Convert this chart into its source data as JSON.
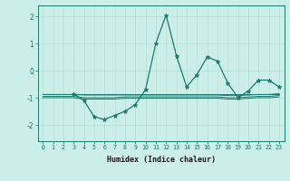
{
  "xlabel": "Humidex (Indice chaleur)",
  "bg_color": "#cceee8",
  "line_color": "#1a7a6e",
  "grid_color": "#b8ddd8",
  "xlim": [
    -0.5,
    23.5
  ],
  "ylim": [
    -2.6,
    2.4
  ],
  "yticks": [
    -2,
    -1,
    0,
    1,
    2
  ],
  "xticks": [
    0,
    1,
    2,
    3,
    4,
    5,
    6,
    7,
    8,
    9,
    10,
    11,
    12,
    13,
    14,
    15,
    16,
    17,
    18,
    19,
    20,
    21,
    22,
    23
  ],
  "series": [
    [
      null,
      null,
      null,
      -0.85,
      -1.1,
      -1.7,
      -1.8,
      -1.65,
      -1.5,
      -1.25,
      -0.7,
      1.0,
      2.05,
      0.55,
      -0.6,
      -0.15,
      0.5,
      0.35,
      -0.45,
      -1.0,
      -0.75,
      -0.35,
      -0.35,
      -0.6
    ],
    [
      -0.85,
      -0.85,
      -0.85,
      -0.85,
      -0.85,
      -0.85,
      -0.85,
      -0.85,
      -0.85,
      -0.85,
      -0.85,
      -0.85,
      -0.85,
      -0.85,
      -0.85,
      -0.85,
      -0.85,
      -0.85,
      -0.85,
      -0.85,
      -0.85,
      -0.85,
      -0.85,
      -0.85
    ],
    [
      -0.88,
      -0.88,
      -0.88,
      -0.88,
      -0.9,
      -0.9,
      -0.9,
      -0.9,
      -0.9,
      -0.9,
      -0.9,
      -0.9,
      -0.9,
      -0.9,
      -0.9,
      -0.9,
      -0.9,
      -0.9,
      -0.92,
      -0.92,
      -0.9,
      -0.88,
      -0.88,
      -0.85
    ],
    [
      -0.95,
      -0.95,
      -0.95,
      -0.95,
      -1.0,
      -1.0,
      -1.0,
      -1.0,
      -0.97,
      -0.97,
      -0.97,
      -0.97,
      -0.97,
      -0.97,
      -0.97,
      -0.97,
      -0.97,
      -0.97,
      -1.0,
      -1.0,
      -0.97,
      -0.95,
      -0.95,
      -0.92
    ],
    [
      -1.0,
      -1.0,
      -1.0,
      -1.0,
      -1.05,
      -1.05,
      -1.05,
      -1.05,
      -1.02,
      -1.02,
      -1.02,
      -1.02,
      -1.02,
      -1.02,
      -1.02,
      -1.02,
      -1.02,
      -1.02,
      -1.05,
      -1.05,
      -1.02,
      -1.0,
      -1.0,
      -0.97
    ]
  ]
}
